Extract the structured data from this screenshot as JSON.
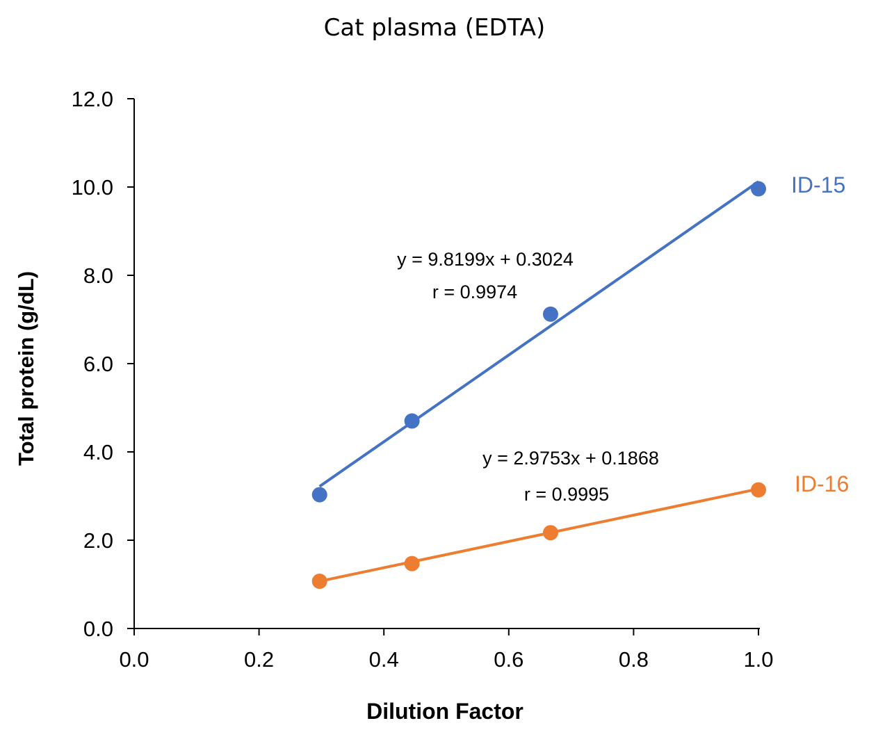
{
  "chart_data": {
    "type": "scatter",
    "title": "Cat plasma (EDTA)",
    "xlabel": "Dilution Factor",
    "ylabel": "Total protein (g/dL)",
    "xlim": [
      0.0,
      1.0
    ],
    "ylim": [
      0.0,
      12.0
    ],
    "xticks": [
      "0.0",
      "0.2",
      "0.4",
      "0.6",
      "0.8",
      "1.0"
    ],
    "yticks": [
      "0.0",
      "2.0",
      "4.0",
      "6.0",
      "8.0",
      "10.0",
      "12.0"
    ],
    "grid": false,
    "series": [
      {
        "name": "ID-15",
        "color": "#4472C4",
        "x": [
          0.297,
          0.445,
          0.667,
          1.0
        ],
        "y": [
          3.03,
          4.7,
          7.12,
          9.96
        ],
        "trendline": {
          "slope": 9.8199,
          "intercept": 0.3024
        },
        "equation": "y = 9.8199x + 0.3024",
        "r_text": "r = 0.9974"
      },
      {
        "name": "ID-16",
        "color": "#ED7D31",
        "x": [
          0.297,
          0.445,
          0.667,
          1.0
        ],
        "y": [
          1.07,
          1.47,
          2.17,
          3.14
        ],
        "trendline": {
          "slope": 2.9753,
          "intercept": 0.1868
        },
        "equation": "y = 2.9753x + 0.1868",
        "r_text": "r = 0.9995"
      }
    ]
  }
}
